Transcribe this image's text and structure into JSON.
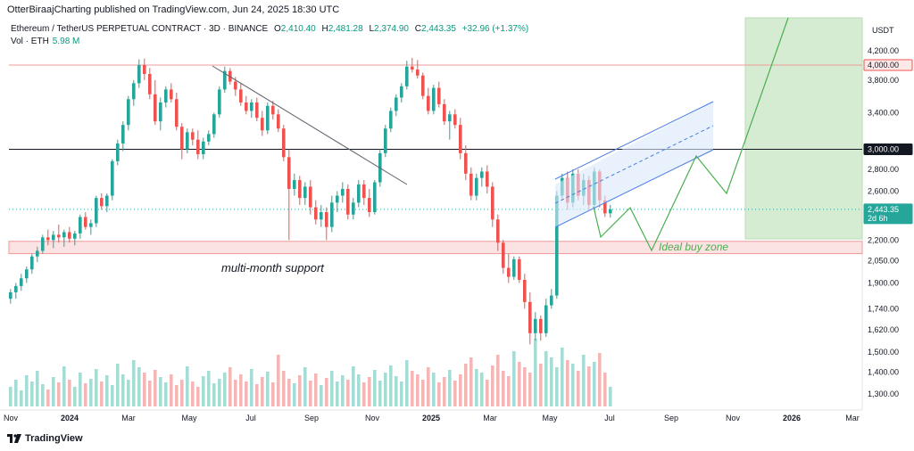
{
  "header": {
    "publisher": "OtterBiraajCharting published on TradingView.com, Jun 24, 2025 18:30 UTC",
    "symbol": "Ethereum / TetherUS PERPETUAL CONTRACT · 3D · BINANCE",
    "ohlc": {
      "o_label": "O",
      "o": "2,410.40",
      "h_label": "H",
      "h": "2,481.28",
      "l_label": "L",
      "l": "2,374.90",
      "c_label": "C",
      "c": "2,443.35",
      "change": "+32.96 (+1.37%)"
    },
    "volume_label": "Vol · ETH",
    "volume_value": "5.98 M"
  },
  "footer": {
    "brand": "TradingView"
  },
  "chart_data": {
    "type": "candlestick",
    "currency": "USDT",
    "y_axis_ticks": [
      "4,200.00",
      "3,800.00",
      "3,400.00",
      "2,800.00",
      "2,600.00",
      "2,200.00",
      "2,050.00",
      "1,900.00",
      "1,740.00",
      "1,620.00",
      "1,500.00",
      "1,400.00",
      "1,300.00"
    ],
    "x_axis_ticks": [
      "Nov",
      "2024",
      "Mar",
      "May",
      "Jul",
      "Sep",
      "Nov",
      "2025",
      "Mar",
      "May",
      "Jul",
      "Sep",
      "Nov",
      "2026",
      "Mar"
    ],
    "price_labels": [
      {
        "text": "4,000.00",
        "value": 4000,
        "style": "red-box"
      },
      {
        "text": "3,000.00",
        "value": 3000,
        "style": "black-box"
      },
      {
        "text": "2,443.35",
        "sub": "2d 6h",
        "value": 2443.35,
        "style": "teal-box"
      }
    ],
    "annotations": {
      "support_label": "multi-month support",
      "buy_zone_label": "Ideal buy zone",
      "support_zone": [
        2100,
        2190
      ]
    },
    "candles": [
      [
        1800,
        1860,
        1770,
        1840
      ],
      [
        1840,
        1900,
        1800,
        1880
      ],
      [
        1880,
        1960,
        1850,
        1930
      ],
      [
        1930,
        2010,
        1900,
        1990
      ],
      [
        1990,
        2100,
        1960,
        2080
      ],
      [
        2080,
        2150,
        2040,
        2120
      ],
      [
        2120,
        2240,
        2100,
        2220
      ],
      [
        2220,
        2280,
        2160,
        2200
      ],
      [
        2200,
        2270,
        2140,
        2240
      ],
      [
        2240,
        2320,
        2180,
        2220
      ],
      [
        2220,
        2280,
        2150,
        2260
      ],
      [
        2260,
        2300,
        2180,
        2210
      ],
      [
        2210,
        2270,
        2160,
        2250
      ],
      [
        2250,
        2400,
        2210,
        2380
      ],
      [
        2380,
        2420,
        2280,
        2300
      ],
      [
        2300,
        2360,
        2240,
        2330
      ],
      [
        2330,
        2560,
        2300,
        2540
      ],
      [
        2540,
        2580,
        2440,
        2470
      ],
      [
        2470,
        2580,
        2420,
        2560
      ],
      [
        2560,
        2900,
        2520,
        2880
      ],
      [
        2880,
        3100,
        2840,
        3060
      ],
      [
        3060,
        3300,
        2980,
        3260
      ],
      [
        3260,
        3600,
        3200,
        3560
      ],
      [
        3560,
        3800,
        3480,
        3760
      ],
      [
        3760,
        4080,
        3700,
        4000
      ],
      [
        4000,
        4090,
        3800,
        3880
      ],
      [
        3880,
        3960,
        3560,
        3620
      ],
      [
        3620,
        3800,
        3260,
        3300
      ],
      [
        3300,
        3580,
        3200,
        3520
      ],
      [
        3520,
        3720,
        3460,
        3680
      ],
      [
        3680,
        3760,
        3520,
        3560
      ],
      [
        3560,
        3640,
        3200,
        3240
      ],
      [
        3240,
        3280,
        2900,
        3000
      ],
      [
        3000,
        3220,
        2960,
        3180
      ],
      [
        3180,
        3220,
        3040,
        3100
      ],
      [
        3100,
        3200,
        2900,
        2950
      ],
      [
        2950,
        3120,
        2900,
        3080
      ],
      [
        3080,
        3200,
        3040,
        3160
      ],
      [
        3160,
        3400,
        3120,
        3380
      ],
      [
        3380,
        3720,
        3340,
        3680
      ],
      [
        3680,
        3980,
        3640,
        3920
      ],
      [
        3920,
        3960,
        3740,
        3780
      ],
      [
        3780,
        3840,
        3600,
        3680
      ],
      [
        3680,
        3760,
        3480,
        3520
      ],
      [
        3520,
        3600,
        3380,
        3420
      ],
      [
        3420,
        3560,
        3340,
        3520
      ],
      [
        3520,
        3580,
        3300,
        3340
      ],
      [
        3340,
        3420,
        3140,
        3200
      ],
      [
        3200,
        3520,
        3160,
        3480
      ],
      [
        3480,
        3540,
        3320,
        3380
      ],
      [
        3380,
        3440,
        3180,
        3220
      ],
      [
        3220,
        3260,
        2880,
        2920
      ],
      [
        2920,
        3000,
        2200,
        2620
      ],
      [
        2620,
        2760,
        2560,
        2700
      ],
      [
        2700,
        2740,
        2480,
        2540
      ],
      [
        2540,
        2680,
        2480,
        2640
      ],
      [
        2640,
        2700,
        2400,
        2460
      ],
      [
        2460,
        2520,
        2320,
        2360
      ],
      [
        2360,
        2480,
        2300,
        2420
      ],
      [
        2420,
        2460,
        2200,
        2300
      ],
      [
        2300,
        2560,
        2260,
        2500
      ],
      [
        2500,
        2600,
        2420,
        2560
      ],
      [
        2560,
        2680,
        2500,
        2620
      ],
      [
        2620,
        2660,
        2360,
        2400
      ],
      [
        2400,
        2540,
        2360,
        2500
      ],
      [
        2500,
        2700,
        2460,
        2660
      ],
      [
        2660,
        2700,
        2480,
        2540
      ],
      [
        2540,
        2620,
        2380,
        2420
      ],
      [
        2420,
        2700,
        2400,
        2680
      ],
      [
        2680,
        3000,
        2640,
        2960
      ],
      [
        2960,
        3260,
        2920,
        3220
      ],
      [
        3220,
        3460,
        3180,
        3420
      ],
      [
        3420,
        3620,
        3360,
        3580
      ],
      [
        3580,
        3760,
        3520,
        3720
      ],
      [
        3720,
        4060,
        3680,
        3980
      ],
      [
        3980,
        4100,
        3900,
        3940
      ],
      [
        3940,
        4070,
        3820,
        3860
      ],
      [
        3860,
        3900,
        3560,
        3600
      ],
      [
        3600,
        3700,
        3380,
        3420
      ],
      [
        3420,
        3740,
        3380,
        3700
      ],
      [
        3700,
        3780,
        3460,
        3500
      ],
      [
        3500,
        3560,
        3260,
        3300
      ],
      [
        3300,
        3420,
        3100,
        3380
      ],
      [
        3380,
        3440,
        3220,
        3260
      ],
      [
        3260,
        3340,
        2900,
        2960
      ],
      [
        2960,
        3040,
        2700,
        2760
      ],
      [
        2760,
        2820,
        2520,
        2560
      ],
      [
        2560,
        2760,
        2520,
        2720
      ],
      [
        2720,
        2820,
        2640,
        2780
      ],
      [
        2780,
        2840,
        2580,
        2640
      ],
      [
        2640,
        2680,
        2300,
        2360
      ],
      [
        2360,
        2400,
        2120,
        2180
      ],
      [
        2180,
        2200,
        1960,
        2000
      ],
      [
        2000,
        2100,
        1900,
        1940
      ],
      [
        1940,
        2080,
        1920,
        2060
      ],
      [
        2060,
        2080,
        1900,
        1920
      ],
      [
        1920,
        1960,
        1740,
        1780
      ],
      [
        1780,
        1840,
        1540,
        1600
      ],
      [
        1600,
        1720,
        1560,
        1680
      ],
      [
        1680,
        1700,
        1560,
        1600
      ],
      [
        1600,
        1800,
        1580,
        1760
      ],
      [
        1760,
        1860,
        1740,
        1820
      ],
      [
        1820,
        2600,
        1800,
        2560
      ],
      [
        2560,
        2760,
        2520,
        2720
      ],
      [
        2720,
        2780,
        2440,
        2500
      ],
      [
        2500,
        2800,
        2460,
        2760
      ],
      [
        2760,
        2800,
        2520,
        2560
      ],
      [
        2560,
        2760,
        2480,
        2700
      ],
      [
        2700,
        2740,
        2440,
        2480
      ],
      [
        2480,
        2820,
        2460,
        2780
      ],
      [
        2780,
        2800,
        2460,
        2520
      ],
      [
        2520,
        2560,
        2380,
        2410
      ],
      [
        2410,
        2481.28,
        2374.9,
        2443.35
      ]
    ]
  }
}
